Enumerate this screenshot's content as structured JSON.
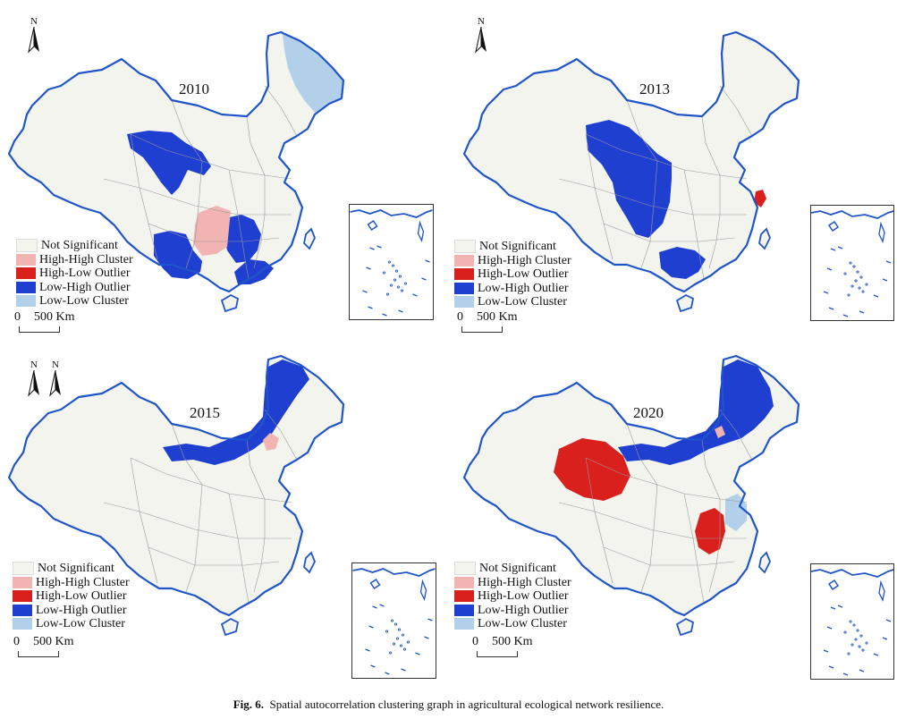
{
  "legend": {
    "title": "",
    "items": [
      {
        "label": "Not Significant",
        "color": "#f4f4ef"
      },
      {
        "label": "High-High Cluster",
        "color": "#f2b3b3"
      },
      {
        "label": "High-Low Outlier",
        "color": "#d9201c"
      },
      {
        "label": "Low-High Outlier",
        "color": "#1f3fd1"
      },
      {
        "label": "Low-Low Cluster",
        "color": "#b3d0ea"
      }
    ]
  },
  "scale_bar": {
    "zero": "0",
    "distance": "500",
    "unit": "Km"
  },
  "north_label": "N",
  "panels": [
    {
      "year": "2010"
    },
    {
      "year": "2013"
    },
    {
      "year": "2015"
    },
    {
      "year": "2020"
    }
  ],
  "caption": {
    "label": "Fig. 6.",
    "text": "Spatial autocorrelation clustering graph in agricultural ecological network resilience."
  },
  "colors": {
    "border": "#1f55c8",
    "internal_boundary": "#999999"
  }
}
